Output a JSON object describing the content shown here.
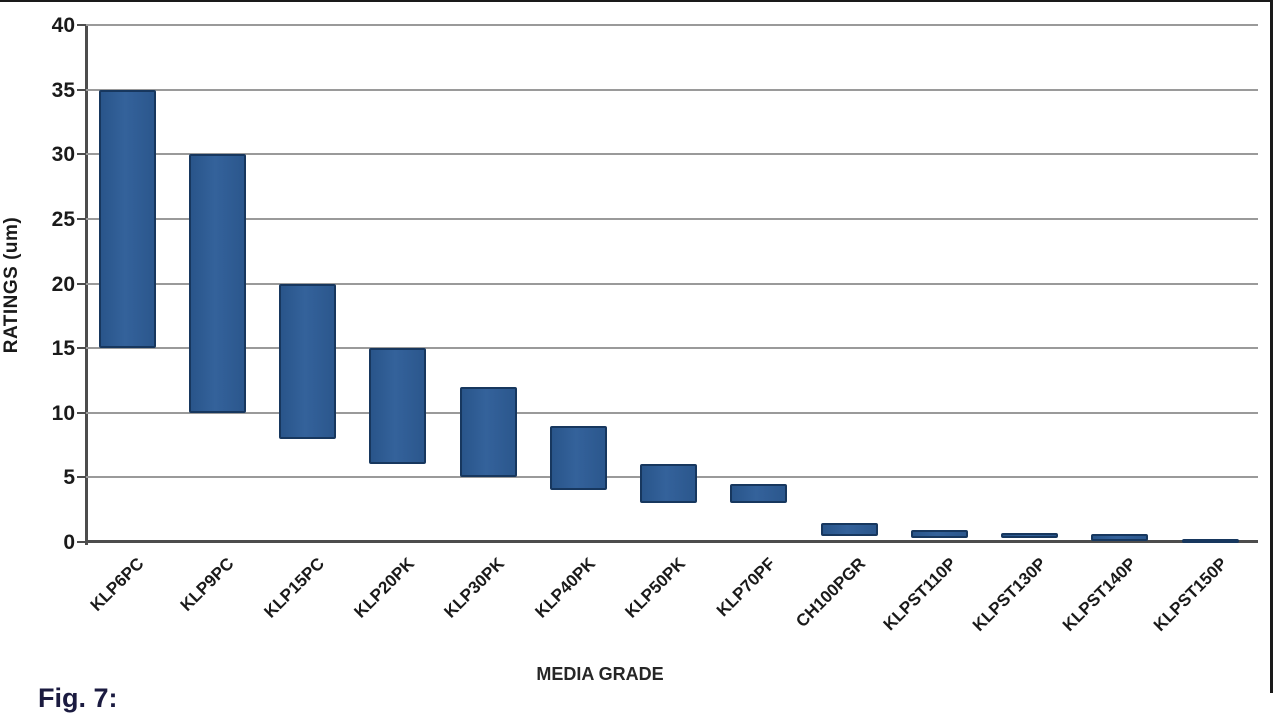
{
  "figure": {
    "caption_partial": "Fig. 7:",
    "background_color": "#ffffff",
    "frame_color": "#1a1a1a"
  },
  "colors": {
    "bar_fill": "#2E5C8E",
    "bar_border": "#17375E",
    "gridline": "#9a9a9a",
    "axis": "#4d4d4d",
    "text": "#1a1a1a"
  },
  "chart_data": {
    "type": "bar",
    "subtype": "floating-range-bars",
    "title": "",
    "xlabel": "MEDIA GRADE",
    "ylabel": "RATINGS (um)",
    "ylim": [
      0,
      40
    ],
    "yticks": [
      0,
      5,
      10,
      15,
      20,
      25,
      30,
      35,
      40
    ],
    "grid": true,
    "legend_position": "none",
    "categories": [
      "KLP6PC",
      "KLP9PC",
      "KLP15PC",
      "KLP20PK",
      "KLP30PK",
      "KLP40PK",
      "KLP50PK",
      "KLP70PF",
      "CH100PGR",
      "KLPST110P",
      "KLPST130P",
      "KLPST140P",
      "KLPST150P"
    ],
    "series": [
      {
        "value_type": "range_low_high_um",
        "ranges": [
          [
            15,
            35
          ],
          [
            10,
            30
          ],
          [
            8,
            20
          ],
          [
            6,
            15
          ],
          [
            5,
            12
          ],
          [
            4,
            9
          ],
          [
            3,
            6
          ],
          [
            3,
            4.5
          ],
          [
            0.5,
            1.5
          ],
          [
            0.3,
            0.9
          ],
          [
            0.3,
            0.7
          ],
          [
            0.1,
            0.6
          ],
          [
            0,
            0.2
          ]
        ]
      }
    ]
  }
}
